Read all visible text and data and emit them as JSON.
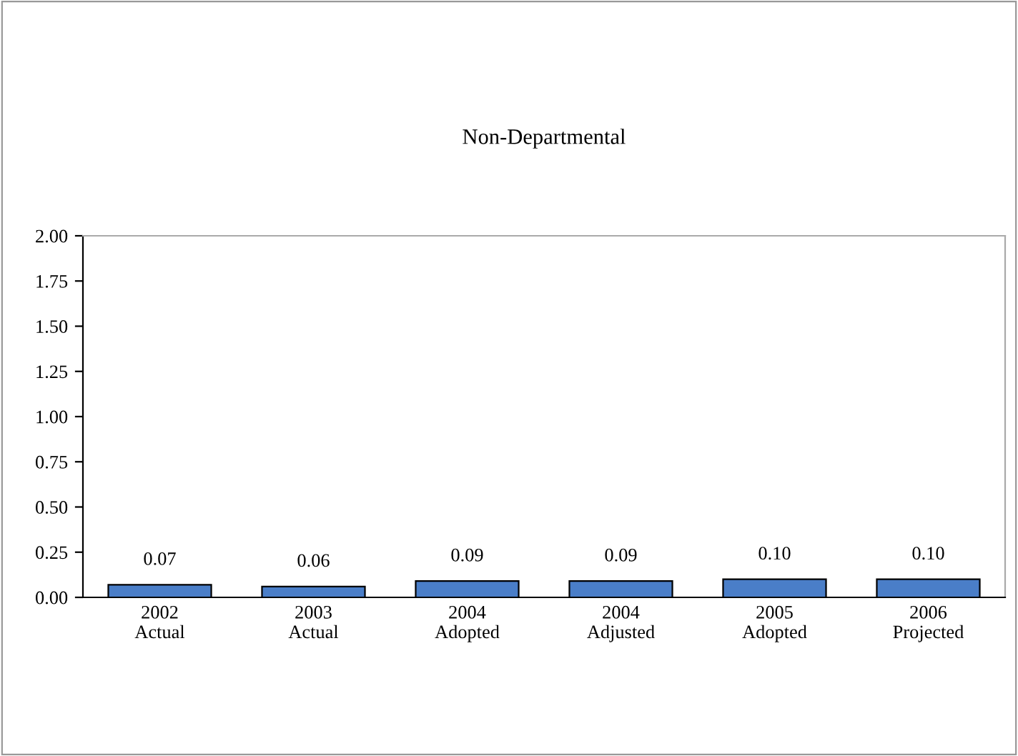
{
  "chart_data": {
    "type": "bar",
    "title": "Non-Departmental",
    "categories": [
      "2002\nActual",
      "2003\nActual",
      "2004\nAdopted",
      "2004\nAdjusted",
      "2005\nAdopted",
      "2006\nProjected"
    ],
    "values": [
      0.07,
      0.06,
      0.09,
      0.09,
      0.1,
      0.1
    ],
    "value_labels": [
      "0.07",
      "0.06",
      "0.09",
      "0.09",
      "0.10",
      "0.10"
    ],
    "color": "#4a7ec8",
    "ylim": [
      0,
      2
    ],
    "yticks": [
      {
        "value": 0,
        "label": "0.00"
      },
      {
        "value": 0.25,
        "label": "0.25"
      },
      {
        "value": 0.5,
        "label": "0.50"
      },
      {
        "value": 0.75,
        "label": "0.75"
      },
      {
        "value": 1,
        "label": "1.00"
      },
      {
        "value": 1.25,
        "label": "1.25"
      },
      {
        "value": 1.5,
        "label": "1.50"
      },
      {
        "value": 1.75,
        "label": "1.75"
      },
      {
        "value": 2,
        "label": "2.00"
      }
    ],
    "grid": false
  }
}
